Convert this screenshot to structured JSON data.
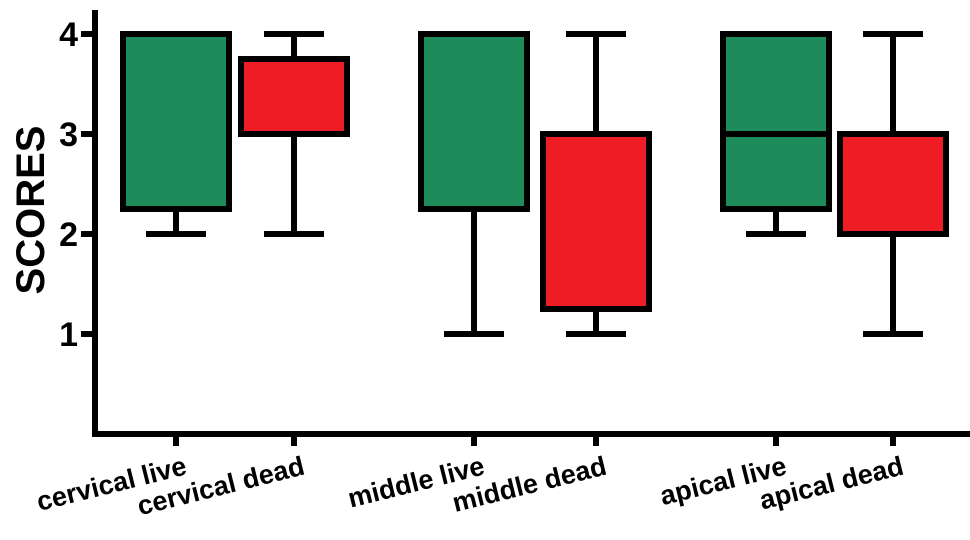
{
  "chart_data": {
    "type": "boxplot",
    "ylabel": "SCORES",
    "ylim": [
      0,
      4
    ],
    "yticks": [
      1,
      2,
      3,
      4
    ],
    "grid": false,
    "legend": "none",
    "categories": [
      "cervical live",
      "cervical dead",
      "middle live",
      "middle dead",
      "apical live",
      "apical dead"
    ],
    "boxes": [
      {
        "label": "cervical live",
        "min": 2,
        "q1": 2.25,
        "median": 4,
        "q3": 4,
        "max": 4,
        "color": "#1e8c5a"
      },
      {
        "label": "cervical dead",
        "min": 2,
        "q1": 3,
        "median": 3.75,
        "q3": 3.75,
        "max": 4,
        "color": "#ee1c24"
      },
      {
        "label": "middle live",
        "min": 1,
        "q1": 2.25,
        "median": 4,
        "q3": 4,
        "max": 4,
        "color": "#1e8c5a"
      },
      {
        "label": "middle dead",
        "min": 1,
        "q1": 1.25,
        "median": 3,
        "q3": 3,
        "max": 4,
        "color": "#ee1c24"
      },
      {
        "label": "apical live",
        "min": 2,
        "q1": 2.25,
        "median": 3,
        "q3": 4,
        "max": 4,
        "color": "#1e8c5a"
      },
      {
        "label": "apical dead",
        "min": 1,
        "q1": 2,
        "median": 3,
        "q3": 3,
        "max": 4,
        "color": "#ee1c24"
      }
    ]
  }
}
